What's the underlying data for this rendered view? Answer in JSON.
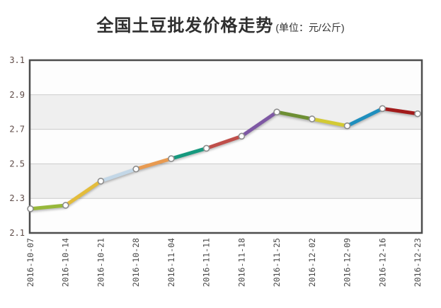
{
  "title": {
    "main": "全国土豆批发价格走势",
    "unit": "(单位：元/公斤)"
  },
  "chart_data": {
    "type": "line",
    "title": "全国土豆批发价格走势",
    "unit_label": "(单位：元/公斤)",
    "x": [
      "2016-10-07",
      "2016-10-14",
      "2016-10-21",
      "2016-10-28",
      "2016-11-04",
      "2016-11-11",
      "2016-11-18",
      "2016-11-25",
      "2016-12-02",
      "2016-12-09",
      "2016-12-16",
      "2016-12-23"
    ],
    "values": [
      2.24,
      2.26,
      2.4,
      2.47,
      2.53,
      2.59,
      2.66,
      2.8,
      2.76,
      2.72,
      2.82,
      2.79
    ],
    "ylim": [
      2.1,
      3.1
    ],
    "y_ticks": [
      "3.1",
      "2.9",
      "2.7",
      "2.5",
      "2.3",
      "2.1"
    ],
    "grid": true,
    "legend": "none",
    "x_label_rotation": -90,
    "segment_colors": [
      "#97b83a",
      "#e3bc3b",
      "#c3d7e7",
      "#e89a50",
      "#16997e",
      "#bf4e4a",
      "#7e58a4",
      "#6d8f33",
      "#d3ca34",
      "#1f8fbe",
      "#a21a1a"
    ],
    "marker": {
      "fill": "#ffffff",
      "stroke": "#8c8c8c"
    },
    "colors": {
      "axis_border": "#4d4d4d",
      "gridline": "#cccccc",
      "band_alt": "#efefef",
      "band_main": "#fdfdfd",
      "y_label": "#5d4a46",
      "x_label": "#4a4a4a",
      "title": "#2f2f2f"
    }
  }
}
